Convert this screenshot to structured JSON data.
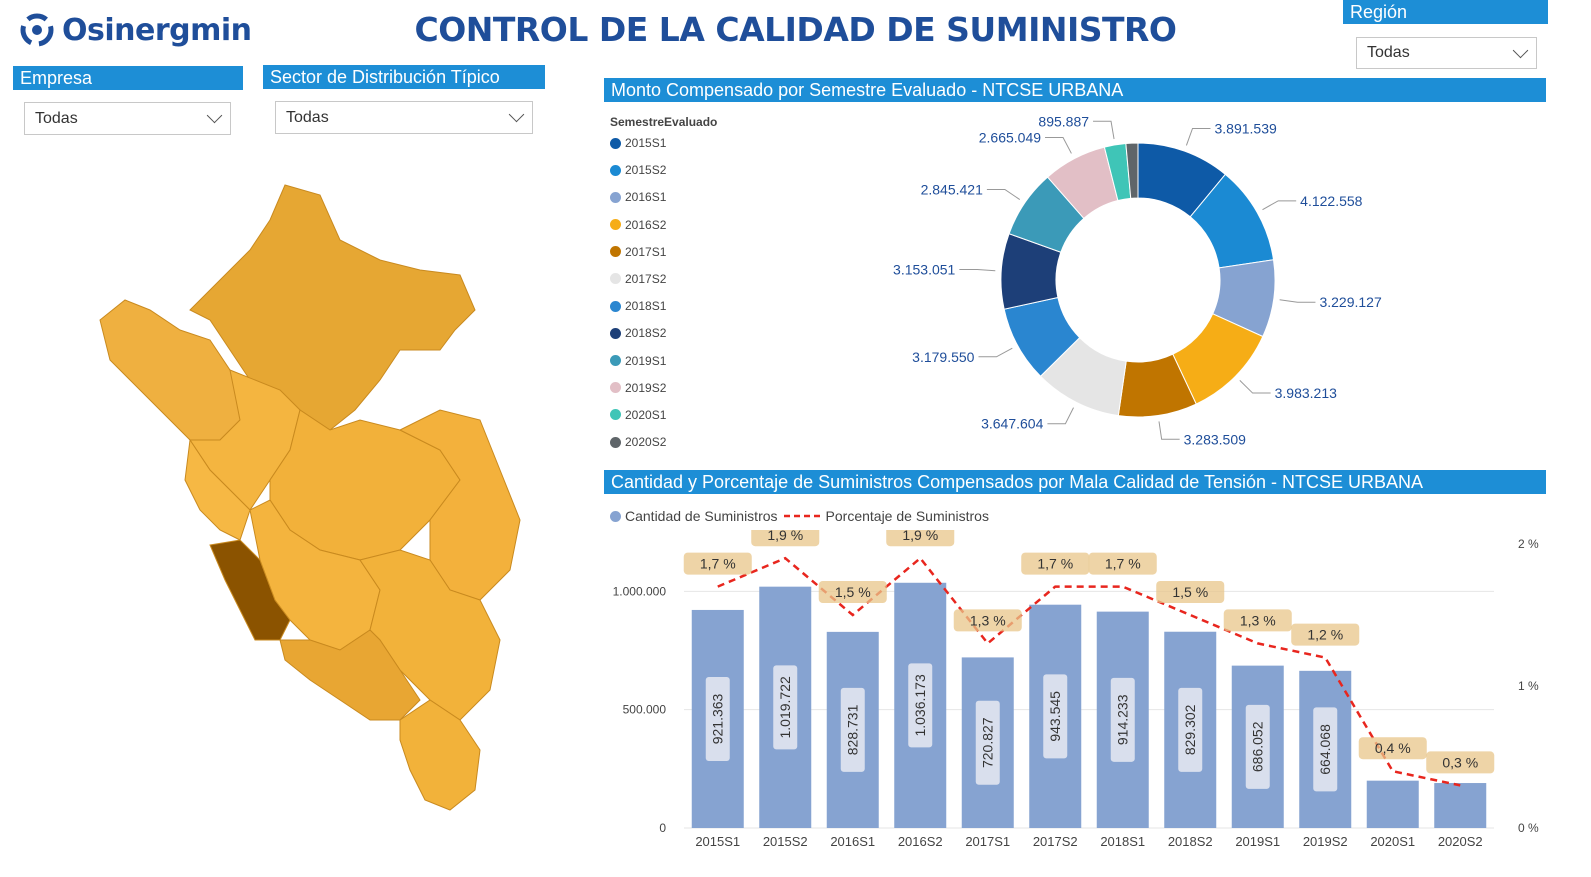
{
  "header": {
    "logo_text": "Osinergmin",
    "title": "CONTROL DE LA CALIDAD DE SUMINISTRO"
  },
  "filters": {
    "empresa": {
      "label": "Empresa",
      "value": "Todas"
    },
    "sector": {
      "label": "Sector de Distribución Típico",
      "value": "Todas"
    },
    "region": {
      "label": "Región",
      "value": "Todas"
    }
  },
  "donut_section": {
    "title": "Monto Compensado por Semestre Evaluado - NTCSE URBANA",
    "legend_title": "SemestreEvaluado"
  },
  "combo_section": {
    "title": "Cantidad y Porcentaje de Suministros Compensados por Mala Calidad de Tensión - NTCSE URBANA",
    "legend_bar": "Cantidad de Suministros",
    "legend_line": "Porcentaje de Suministros"
  },
  "map": {
    "highlighted_region_color": "#8b5300",
    "region_color": "#f3b13c"
  },
  "chart_data": [
    {
      "type": "pie",
      "title": "Monto Compensado por Semestre Evaluado - NTCSE URBANA",
      "legend_title": "SemestreEvaluado",
      "categories": [
        "2015S1",
        "2015S2",
        "2016S1",
        "2016S2",
        "2017S1",
        "2017S2",
        "2018S1",
        "2018S2",
        "2019S1",
        "2019S2",
        "2020S1",
        "2020S2"
      ],
      "values": [
        3891539,
        4122558,
        3229127,
        3983213,
        3283509,
        3647604,
        3179550,
        3153051,
        2845421,
        2665049,
        895887,
        0
      ],
      "value_labels": [
        "3.891.539",
        "4.122.558",
        "3.229.127",
        "3.983.213",
        "3.283.509",
        "3.647.604",
        "3.179.550",
        "3.153.051",
        "2.845.421",
        "2.665.049",
        "895.887",
        ""
      ],
      "colors": [
        "#0e5aa7",
        "#1b8ad3",
        "#86a3d1",
        "#f6ad16",
        "#c07500",
        "#e5e5e5",
        "#2a86d0",
        "#1d3f78",
        "#3b9ab8",
        "#e2bfc6",
        "#3fc5b7",
        "#5f6569"
      ],
      "legend": "left"
    },
    {
      "type": "bar",
      "title": "Cantidad y Porcentaje de Suministros Compensados por Mala Calidad de Tensión - NTCSE URBANA",
      "categories": [
        "2015S1",
        "2015S2",
        "2016S1",
        "2016S2",
        "2017S1",
        "2017S2",
        "2018S1",
        "2018S2",
        "2019S1",
        "2019S2",
        "2020S1",
        "2020S2"
      ],
      "series": [
        {
          "name": "Cantidad de Suministros",
          "kind": "bar",
          "axis": "left",
          "color": "#86a3d1",
          "values": [
            921363,
            1019722,
            828731,
            1036173,
            720827,
            943545,
            914233,
            829302,
            686052,
            664068,
            200000,
            190000
          ],
          "value_labels": [
            "921.363",
            "1.019.722",
            "828.731",
            "1.036.173",
            "720.827",
            "943.545",
            "914.233",
            "829.302",
            "686.052",
            "664.068",
            "",
            ""
          ]
        },
        {
          "name": "Porcentaje de Suministros",
          "kind": "line",
          "axis": "right",
          "color": "#e8261e",
          "dashed": true,
          "values": [
            1.7,
            1.9,
            1.5,
            1.9,
            1.3,
            1.7,
            1.7,
            1.5,
            1.3,
            1.2,
            0.4,
            0.3
          ],
          "value_labels": [
            "1,7 %",
            "1,9 %",
            "1,5 %",
            "1,9 %",
            "1,3 %",
            "1,7 %",
            "1,7 %",
            "1,5 %",
            "1,3 %",
            "1,2 %",
            "0,4 %",
            "0,3 %"
          ]
        }
      ],
      "y_ticks": [
        "0",
        "500.000",
        "1.000.000"
      ],
      "y_tick_values": [
        0,
        500000,
        1000000
      ],
      "ylim": [
        0,
        1200000
      ],
      "y2_ticks": [
        "0 %",
        "1 %",
        "2 %"
      ],
      "y2_tick_values": [
        0,
        1,
        2
      ],
      "y2lim": [
        0,
        2
      ],
      "legend": "top-left",
      "grid": true
    }
  ]
}
